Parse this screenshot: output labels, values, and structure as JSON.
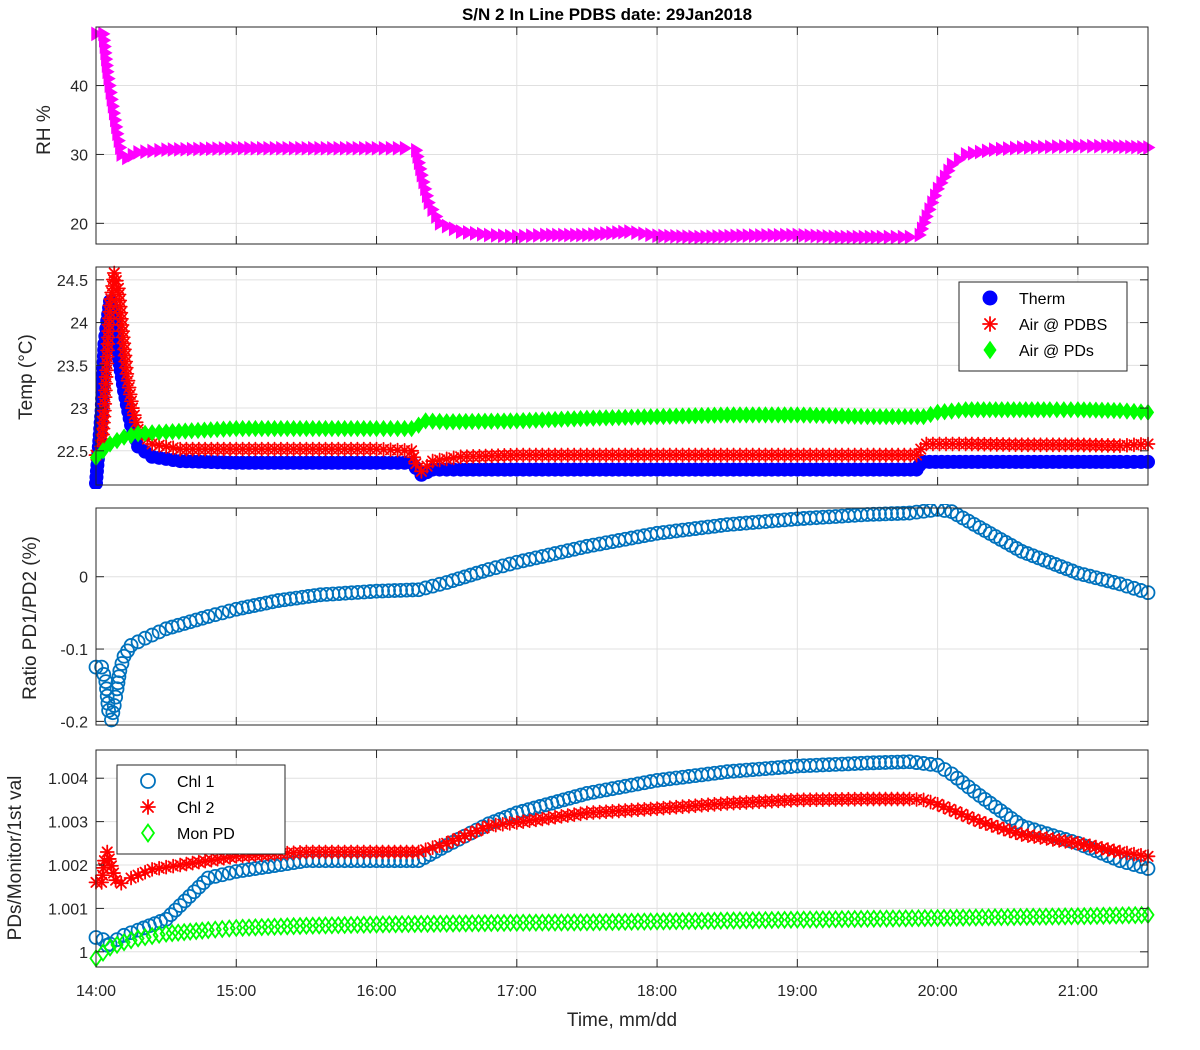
{
  "figure": {
    "title": "S/N 2 In Line PDBS date: 29Jan2018",
    "xlabel": "Time, mm/dd"
  },
  "chart_data": [
    {
      "type": "scatter",
      "id": "rh",
      "ylabel": "RH %",
      "xlim": [
        14.0,
        21.5
      ],
      "ylim": [
        17,
        48.5
      ],
      "yticks": [
        20,
        30,
        40
      ],
      "xticks": [
        "14:00",
        "15:00",
        "16:00",
        "17:00",
        "18:00",
        "19:00",
        "20:00",
        "21:00"
      ],
      "show_xtick_labels": false,
      "grid": true,
      "legend": null,
      "series": [
        {
          "name": "",
          "color": "#ff00ff",
          "marker": "triangle-right",
          "x": [
            14.0,
            14.05,
            14.08,
            14.11,
            14.15,
            14.18,
            14.22,
            14.3,
            14.5,
            15.0,
            15.5,
            16.0,
            16.2,
            16.28,
            16.32,
            16.37,
            16.45,
            16.6,
            16.8,
            17.0,
            17.2,
            17.5,
            17.8,
            18.0,
            18.3,
            18.6,
            19.0,
            19.3,
            19.6,
            19.8,
            19.87,
            19.92,
            20.0,
            20.1,
            20.2,
            20.4,
            20.6,
            20.8,
            21.0,
            21.2,
            21.5
          ],
          "y": [
            47.5,
            47.5,
            42,
            38,
            33,
            30,
            29.5,
            30.3,
            30.7,
            30.9,
            30.9,
            30.9,
            30.9,
            30.6,
            27,
            23,
            20,
            18.8,
            18.3,
            18.1,
            18.3,
            18.3,
            18.8,
            18.2,
            18.0,
            18.2,
            18.3,
            18.0,
            18.0,
            18.0,
            18.3,
            21,
            25,
            28.5,
            30.0,
            30.7,
            31.0,
            31.1,
            31.2,
            31.2,
            31.0
          ]
        }
      ]
    },
    {
      "type": "scatter",
      "id": "temp",
      "ylabel": "Temp (°C)",
      "xlim": [
        14.0,
        21.5
      ],
      "ylim": [
        22.1,
        24.65
      ],
      "yticks": [
        22.5,
        23,
        23.5,
        24,
        24.5
      ],
      "xticks": [
        "14:00",
        "15:00",
        "16:00",
        "17:00",
        "18:00",
        "19:00",
        "20:00",
        "21:00"
      ],
      "show_xtick_labels": false,
      "grid": true,
      "legend": "top-right",
      "series": [
        {
          "name": "Therm",
          "color": "#0000ff",
          "marker": "circle-filled",
          "x": [
            14.0,
            14.04,
            14.06,
            14.08,
            14.1,
            14.13,
            14.16,
            14.2,
            14.25,
            14.3,
            14.4,
            14.6,
            15.0,
            15.5,
            16.0,
            16.25,
            16.28,
            16.32,
            16.4,
            16.6,
            17.0,
            17.5,
            18.0,
            18.5,
            19.0,
            19.5,
            19.85,
            19.87,
            19.9,
            20.2,
            20.6,
            21.0,
            21.3,
            21.5
          ],
          "y": [
            22.12,
            22.97,
            23.75,
            24.02,
            24.25,
            24.1,
            23.6,
            23.2,
            22.8,
            22.55,
            22.43,
            22.38,
            22.36,
            22.36,
            22.36,
            22.36,
            22.3,
            22.22,
            22.28,
            22.28,
            22.28,
            22.28,
            22.28,
            22.28,
            22.28,
            22.28,
            22.28,
            22.33,
            22.37,
            22.37,
            22.37,
            22.37,
            22.37,
            22.37
          ]
        },
        {
          "name": "Air @ PDBS",
          "color": "#ff0000",
          "marker": "asterisk",
          "x": [
            14.0,
            14.04,
            14.06,
            14.08,
            14.1,
            14.13,
            14.16,
            14.19,
            14.22,
            14.26,
            14.3,
            14.4,
            14.6,
            15.0,
            15.5,
            16.0,
            16.25,
            16.28,
            16.32,
            16.4,
            16.6,
            17.0,
            17.5,
            18.0,
            18.5,
            19.0,
            19.5,
            19.85,
            19.88,
            19.92,
            20.2,
            20.6,
            21.0,
            21.3,
            21.5
          ],
          "y": [
            22.45,
            22.55,
            22.97,
            23.6,
            24.2,
            24.58,
            24.4,
            23.9,
            23.4,
            23.0,
            22.75,
            22.58,
            22.52,
            22.52,
            22.52,
            22.52,
            22.5,
            22.35,
            22.26,
            22.38,
            22.43,
            22.45,
            22.45,
            22.45,
            22.45,
            22.45,
            22.45,
            22.45,
            22.52,
            22.58,
            22.58,
            22.57,
            22.57,
            22.56,
            22.58
          ]
        },
        {
          "name": "Air @ PDs",
          "color": "#00ff00",
          "marker": "diamond-filled",
          "x": [
            14.0,
            14.05,
            14.1,
            14.2,
            14.3,
            14.5,
            15.0,
            15.5,
            16.0,
            16.25,
            16.3,
            16.35,
            16.5,
            17.0,
            17.5,
            18.0,
            18.5,
            19.0,
            19.5,
            19.9,
            20.0,
            20.2,
            20.5,
            20.8,
            21.0,
            21.3,
            21.5
          ],
          "y": [
            22.42,
            22.5,
            22.58,
            22.66,
            22.7,
            22.72,
            22.76,
            22.76,
            22.76,
            22.76,
            22.8,
            22.85,
            22.84,
            22.85,
            22.88,
            22.9,
            22.92,
            22.92,
            22.9,
            22.9,
            22.95,
            22.98,
            22.98,
            22.98,
            22.98,
            22.97,
            22.95
          ]
        }
      ]
    },
    {
      "type": "scatter",
      "id": "ratio",
      "ylabel": "Ratio PD1/PD2 (%)",
      "xlim": [
        14.0,
        21.5
      ],
      "ylim": [
        -0.205,
        0.095
      ],
      "yticks": [
        -0.2,
        -0.1,
        0
      ],
      "xticks": [
        "14:00",
        "15:00",
        "16:00",
        "17:00",
        "18:00",
        "19:00",
        "20:00",
        "21:00"
      ],
      "show_xtick_labels": false,
      "grid": true,
      "legend": null,
      "series": [
        {
          "name": "",
          "color": "#0072bd",
          "marker": "circle-open",
          "x": [
            14.0,
            14.04,
            14.07,
            14.09,
            14.11,
            14.13,
            14.15,
            14.17,
            14.2,
            14.25,
            14.35,
            14.5,
            14.8,
            15.0,
            15.3,
            15.6,
            16.0,
            16.3,
            16.5,
            16.8,
            17.0,
            17.5,
            18.0,
            18.5,
            19.0,
            19.5,
            19.8,
            20.0,
            20.1,
            20.3,
            20.6,
            21.0,
            21.3,
            21.5
          ],
          "y": [
            -0.125,
            -0.125,
            -0.145,
            -0.185,
            -0.198,
            -0.178,
            -0.155,
            -0.13,
            -0.11,
            -0.095,
            -0.085,
            -0.072,
            -0.055,
            -0.045,
            -0.033,
            -0.025,
            -0.02,
            -0.018,
            -0.008,
            0.01,
            0.02,
            0.042,
            0.06,
            0.072,
            0.08,
            0.086,
            0.088,
            0.093,
            0.09,
            0.068,
            0.035,
            0.005,
            -0.01,
            -0.022
          ]
        }
      ]
    },
    {
      "type": "scatter",
      "id": "pds",
      "ylabel": "PDs/Monitor/1st val",
      "xlim": [
        14.0,
        21.5
      ],
      "ylim": [
        0.99965,
        1.00465
      ],
      "yticks": [
        1,
        1.001,
        1.002,
        1.003,
        1.004
      ],
      "xticks": [
        "14:00",
        "15:00",
        "16:00",
        "17:00",
        "18:00",
        "19:00",
        "20:00",
        "21:00"
      ],
      "show_xtick_labels": true,
      "grid": true,
      "legend": "top-left",
      "series": [
        {
          "name": "Chl 1",
          "color": "#0072bd",
          "marker": "circle-open",
          "x": [
            14.0,
            14.05,
            14.08,
            14.1,
            14.15,
            14.2,
            14.3,
            14.5,
            14.8,
            15.0,
            15.5,
            16.0,
            16.3,
            16.5,
            16.8,
            17.0,
            17.5,
            18.0,
            18.5,
            19.0,
            19.5,
            19.8,
            20.0,
            20.1,
            20.3,
            20.6,
            21.0,
            21.3,
            21.5
          ],
          "y": [
            1.00033,
            1.00028,
            1.00015,
            1.00018,
            1.00028,
            1.00038,
            1.0005,
            1.00075,
            1.0017,
            1.00185,
            1.0021,
            1.0021,
            1.0021,
            1.00245,
            1.00295,
            1.0032,
            1.00365,
            1.00395,
            1.00415,
            1.00428,
            1.00435,
            1.00438,
            1.0043,
            1.0041,
            1.0036,
            1.0029,
            1.0025,
            1.0021,
            1.00192
          ]
        },
        {
          "name": "Chl 2",
          "color": "#ff0000",
          "marker": "asterisk",
          "x": [
            14.0,
            14.04,
            14.06,
            14.08,
            14.11,
            14.14,
            14.18,
            14.25,
            14.4,
            14.6,
            15.0,
            15.5,
            16.0,
            16.3,
            16.5,
            16.8,
            17.0,
            17.5,
            18.0,
            18.5,
            19.0,
            19.5,
            19.8,
            19.9,
            20.0,
            20.3,
            20.6,
            21.0,
            21.3,
            21.5
          ],
          "y": [
            1.0016,
            1.0016,
            1.0021,
            1.0023,
            1.00198,
            1.00165,
            1.00158,
            1.0017,
            1.0019,
            1.002,
            1.0022,
            1.0023,
            1.0023,
            1.0023,
            1.0025,
            1.0029,
            1.00298,
            1.0032,
            1.0033,
            1.00342,
            1.0035,
            1.00352,
            1.00352,
            1.0035,
            1.0034,
            1.003,
            1.0027,
            1.0025,
            1.0023,
            1.0022
          ]
        },
        {
          "name": "Mon PD",
          "color": "#00ff00",
          "marker": "diamond-open",
          "x": [
            14.0,
            14.05,
            14.1,
            14.2,
            14.3,
            14.5,
            14.8,
            15.0,
            15.5,
            16.0,
            16.5,
            17.0,
            17.5,
            18.0,
            18.5,
            19.0,
            19.5,
            20.0,
            20.5,
            21.0,
            21.5
          ],
          "y": [
            0.99985,
            0.99998,
            1.0001,
            1.00022,
            1.00031,
            1.00042,
            1.0005,
            1.00055,
            1.0006,
            1.00063,
            1.00065,
            1.00067,
            1.00068,
            1.0007,
            1.00072,
            1.00074,
            1.00076,
            1.00078,
            1.0008,
            1.00082,
            1.00085
          ]
        }
      ]
    }
  ]
}
